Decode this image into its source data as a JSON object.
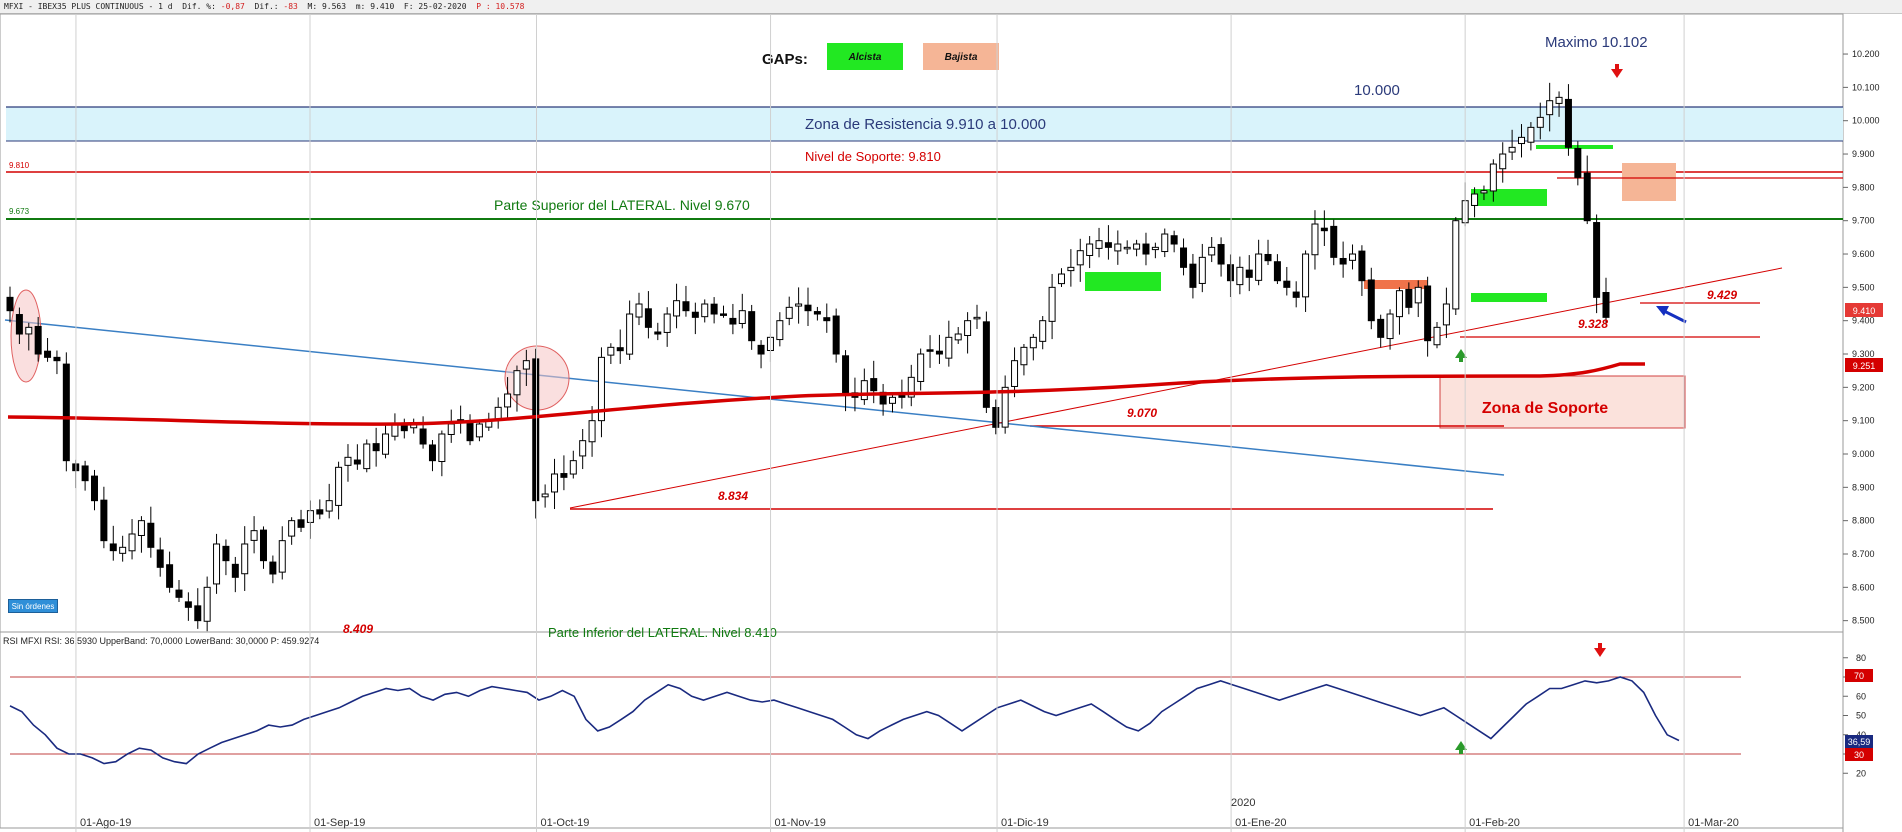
{
  "header": {
    "symbol": "MFXI - IBEX35 PLUS CONTINUOUS - 1 d",
    "dif_pct_label": "Dif. %:",
    "dif_pct_value": "-0,87",
    "dif_label": "Dif.:",
    "dif_value": "-83",
    "high_label": "M:",
    "high_value": "9.563",
    "low_label": "m:",
    "low_value": "9.410",
    "date_label": "F:",
    "date_value": "25-02-2020",
    "close_label": "P :",
    "close_value": "10.578"
  },
  "legend": {
    "title": "GAPs:",
    "bull_label": "Alcista",
    "bear_label": "Bajista"
  },
  "annotations": {
    "maximo": "Maximo 10.102",
    "level_10000": "10.000",
    "resistance_zone": "Zona de Resistencia 9.910 a 10.000",
    "support_level": "Nivel de Soporte: 9.810",
    "lateral_top": "Parte Superior del LATERAL. Nivel 9.670",
    "lateral_bottom": "Parte Inferior del LATERAL. Nivel 8.410",
    "support_zone": "Zona de Soporte",
    "left_9810": "9.810",
    "left_9673": "9.673",
    "lbl_9429": "9.429",
    "lbl_9328": "9.328",
    "lbl_9070": "9.070",
    "lbl_8834": "8.834",
    "lbl_8409": "8.409",
    "sin_ordenes": "Sin órdenes",
    "year_label": "2020"
  },
  "rsi": {
    "title": "RSI MFXI RSI: 36,5930 UpperBand: 70,0000 LowerBand: 30,0000 P: 459.9274",
    "current": "36,59",
    "upper": "70",
    "lower": "30"
  },
  "colors": {
    "bull_gap": "#22e822",
    "bear_gap": "#f5b596",
    "ma_line": "#d40000",
    "resistance_fill": "#d9f3fb",
    "trend_blue": "#3a7fc4",
    "lateral_green": "#107a10",
    "rsi_line": "#1a2a80"
  },
  "chart_data": [
    {
      "type": "candlestick",
      "title": "IBEX35 PLUS CONTINUOUS - 1 d",
      "ylim": [
        8460,
        10250
      ],
      "y_ticks": [
        8500,
        8600,
        8700,
        8800,
        8900,
        9000,
        9100,
        9200,
        9300,
        9400,
        9500,
        9600,
        9700,
        9800,
        9900,
        10000,
        10100,
        10200
      ],
      "y_tick_labels": [
        "8.500",
        "8.600",
        "8.700",
        "8.800",
        "8.900",
        "9.000",
        "9.100",
        "9.200",
        "9.300",
        "9.400",
        "9.500",
        "9.600",
        "9.700",
        "9.800",
        "9.900",
        "10.000",
        "10.100",
        "10.200"
      ],
      "x_labels": [
        {
          "label": "01-Ago-19",
          "date": "2019-08-01"
        },
        {
          "label": "01-Sep-19",
          "date": "2019-09-01"
        },
        {
          "label": "01-Oct-19",
          "date": "2019-10-01"
        },
        {
          "label": "01-Nov-19",
          "date": "2019-11-01"
        },
        {
          "label": "01-Dic-19",
          "date": "2019-12-01"
        },
        {
          "label": "01-Ene-20",
          "date": "2020-01-01"
        },
        {
          "label": "01-Feb-20",
          "date": "2020-02-01"
        },
        {
          "label": "01-Mar-20",
          "date": "2020-03-01"
        }
      ],
      "last_price": "9.410",
      "ma_value": "9.251",
      "series_close": [
        9430,
        9360,
        9380,
        9300,
        9290,
        9280,
        8980,
        8950,
        8920,
        8860,
        8740,
        8710,
        8720,
        8760,
        8800,
        8720,
        8660,
        8600,
        8570,
        8540,
        8500,
        8600,
        8730,
        8680,
        8630,
        8730,
        8770,
        8680,
        8640,
        8740,
        8800,
        8780,
        8830,
        8820,
        8860,
        8960,
        8990,
        8970,
        9030,
        9010,
        9060,
        9090,
        9070,
        9090,
        9030,
        8980,
        9060,
        9090,
        9100,
        9040,
        9090,
        9100,
        9140,
        9180,
        9250,
        9280,
        8860,
        8880,
        8940,
        8930,
        8980,
        9040,
        9100,
        9290,
        9320,
        9310,
        9420,
        9450,
        9380,
        9360,
        9420,
        9460,
        9430,
        9410,
        9450,
        9420,
        9420,
        9390,
        9430,
        9340,
        9300,
        9350,
        9400,
        9440,
        9450,
        9430,
        9420,
        9400,
        9300,
        9180,
        9170,
        9220,
        9190,
        9150,
        9170,
        9170,
        9230,
        9300,
        9310,
        9300,
        9350,
        9360,
        9400,
        9410,
        9140,
        9080,
        9200,
        9280,
        9320,
        9350,
        9400,
        9500,
        9540,
        9560,
        9610,
        9630,
        9640,
        9620,
        9630,
        9620,
        9630,
        9600,
        9620,
        9660,
        9630,
        9560,
        9500,
        9590,
        9620,
        9570,
        9520,
        9560,
        9530,
        9600,
        9580,
        9520,
        9500,
        9470,
        9600,
        9690,
        9670,
        9590,
        9570,
        9600,
        9520,
        9400,
        9350,
        9420,
        9490,
        9440,
        9500,
        9340,
        9380,
        9450,
        9700,
        9760,
        9780,
        9790,
        9870,
        9900,
        9920,
        9950,
        9980,
        10010,
        10060,
        10070,
        9920,
        9830,
        9700,
        9470,
        9410
      ]
    },
    {
      "type": "line",
      "title": "RSI MFXI",
      "ylim": [
        10,
        90
      ],
      "y_ticks": [
        20,
        30,
        40,
        50,
        60,
        70,
        80
      ],
      "upper_band": 70,
      "lower_band": 30,
      "series": [
        {
          "values": [
            55,
            52,
            45,
            40,
            33,
            30,
            30,
            28,
            25,
            26,
            30,
            33,
            32,
            28,
            26,
            25,
            30,
            33,
            36,
            38,
            40,
            42,
            45,
            44,
            45,
            48,
            50,
            52,
            54,
            57,
            60,
            62,
            64,
            63,
            64,
            60,
            58,
            61,
            62,
            60,
            63,
            65,
            64,
            63,
            62,
            58,
            60,
            63,
            60,
            48,
            42,
            44,
            48,
            52,
            58,
            62,
            66,
            64,
            60,
            58,
            60,
            62,
            60,
            58,
            57,
            58,
            56,
            54,
            52,
            50,
            48,
            44,
            40,
            38,
            42,
            45,
            48,
            50,
            52,
            50,
            46,
            42,
            46,
            50,
            54,
            56,
            58,
            55,
            52,
            50,
            52,
            54,
            56,
            52,
            48,
            44,
            42,
            46,
            52,
            56,
            60,
            64,
            66,
            68,
            66,
            64,
            62,
            60,
            58,
            60,
            62,
            64,
            66,
            64,
            62,
            60,
            58,
            56,
            54,
            52,
            50,
            52,
            54,
            50,
            46,
            42,
            38,
            44,
            50,
            56,
            60,
            64,
            64,
            66,
            68,
            67,
            68,
            70,
            68,
            62,
            50,
            40,
            37
          ]
        }
      ]
    }
  ]
}
